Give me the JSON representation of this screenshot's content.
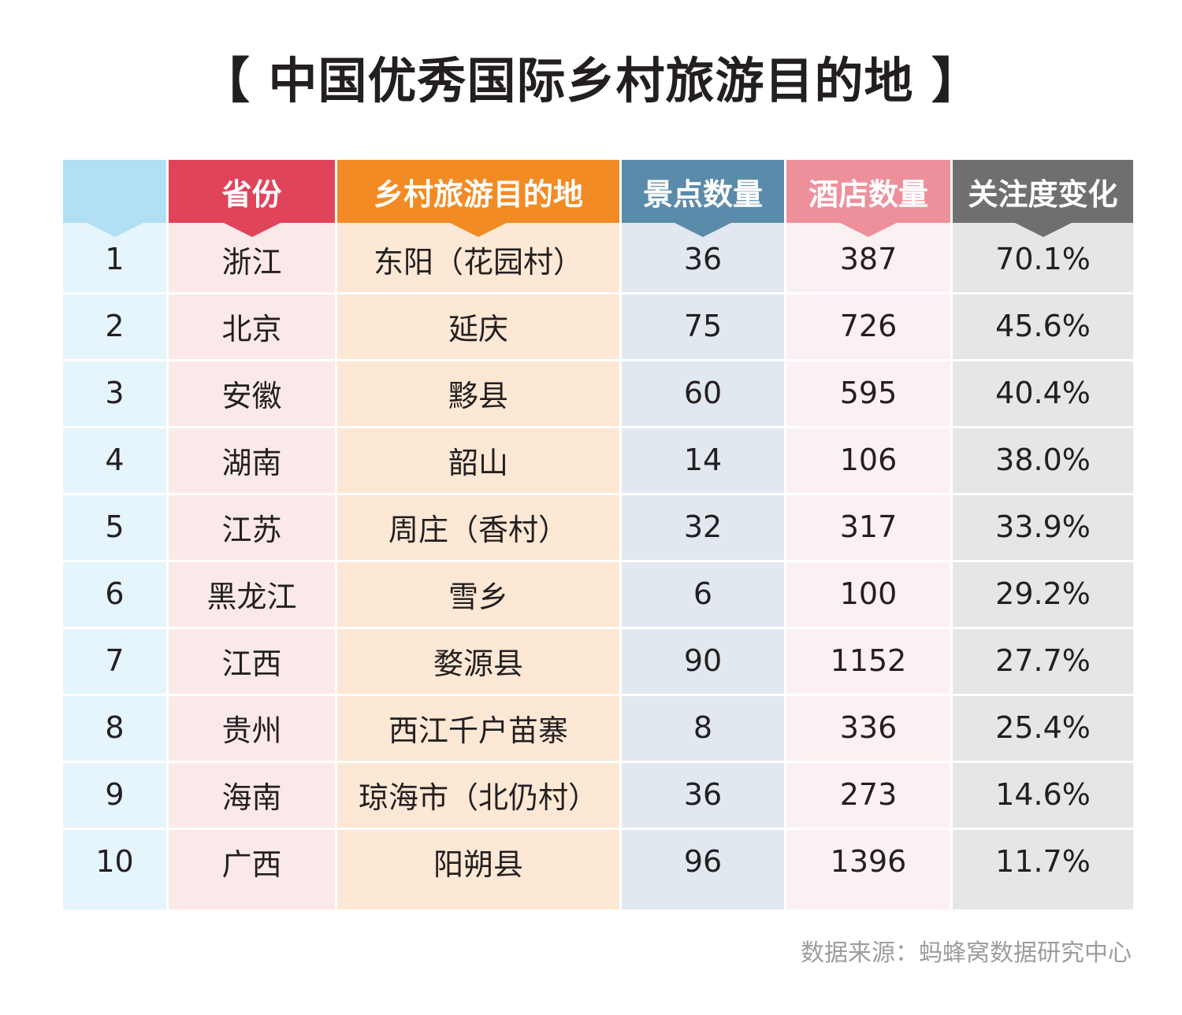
{
  "title": "【 中国优秀国际乡村旅游目的地 】",
  "source": "数据来源：蚂蜂窝数据研究中心",
  "colors": {
    "rank_header": "#b3dff4",
    "rank_body": "#e6f4fb",
    "province_header": "#e0445a",
    "province_body": "#fbe9ea",
    "destination_header": "#f28b24",
    "destination_body": "#fde8d5",
    "attractions_header": "#5b8bab",
    "attractions_body": "#e1e8ef",
    "hotels_header": "#ed909c",
    "hotels_body": "#fcf1f2",
    "change_header": "#6f6f70",
    "change_body": "#e6e6e7"
  },
  "chart_data": {
    "type": "table",
    "title": "【 中国优秀国际乡村旅游目的地 】",
    "columns": [
      "",
      "省份",
      "乡村旅游目的地",
      "景点数量",
      "酒店数量",
      "关注度变化"
    ],
    "rows": [
      [
        "1",
        "浙江",
        "东阳（花园村）",
        "36",
        "387",
        "70.1%"
      ],
      [
        "2",
        "北京",
        "延庆",
        "75",
        "726",
        "45.6%"
      ],
      [
        "3",
        "安徽",
        "黟县",
        "60",
        "595",
        "40.4%"
      ],
      [
        "4",
        "湖南",
        "韶山",
        "14",
        "106",
        "38.0%"
      ],
      [
        "5",
        "江苏",
        "周庄（香村）",
        "32",
        "317",
        "33.9%"
      ],
      [
        "6",
        "黑龙江",
        "雪乡",
        "6",
        "100",
        "29.2%"
      ],
      [
        "7",
        "江西",
        "婺源县",
        "90",
        "1152",
        "27.7%"
      ],
      [
        "8",
        "贵州",
        "西江千户苗寨",
        "8",
        "336",
        "25.4%"
      ],
      [
        "9",
        "海南",
        "琼海市（北仍村）",
        "36",
        "273",
        "14.6%"
      ],
      [
        "10",
        "广西",
        "阳朔县",
        "96",
        "1396",
        "11.7%"
      ]
    ]
  }
}
